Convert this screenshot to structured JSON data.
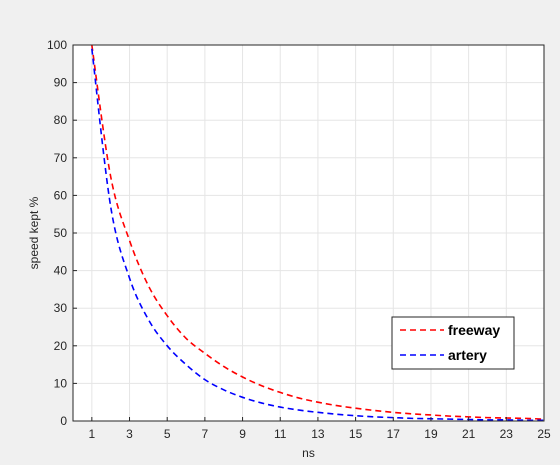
{
  "chart_data": {
    "type": "line",
    "title": "",
    "xlabel": "ns",
    "ylabel": "speed kept %",
    "xlim": [
      0,
      25
    ],
    "ylim": [
      0,
      100
    ],
    "xticks": [
      1,
      3,
      5,
      7,
      9,
      11,
      13,
      15,
      17,
      19,
      21,
      23,
      25
    ],
    "yticks": [
      0,
      10,
      20,
      30,
      40,
      50,
      60,
      70,
      80,
      90,
      100
    ],
    "grid": true,
    "legend_position": "bottom-right",
    "x": [
      1,
      2,
      3,
      4,
      5,
      6,
      7,
      8,
      9,
      10,
      11,
      12,
      13,
      14,
      15,
      16,
      17,
      18,
      19,
      20,
      21,
      22,
      23,
      24,
      25
    ],
    "series": [
      {
        "name": "freeway",
        "color": "#ff0000",
        "values": [
          100,
          65,
          48,
          36,
          28,
          22,
          18,
          14.5,
          11.7,
          9.4,
          7.6,
          6.1,
          5.0,
          4.1,
          3.4,
          2.8,
          2.3,
          1.9,
          1.6,
          1.3,
          1.1,
          0.9,
          0.8,
          0.7,
          0.5
        ]
      },
      {
        "name": "artery",
        "color": "#0000ff",
        "values": [
          99,
          57,
          38,
          27,
          20,
          15,
          11,
          8.3,
          6.3,
          4.8,
          3.7,
          2.9,
          2.3,
          1.8,
          1.4,
          1.1,
          0.9,
          0.7,
          0.6,
          0.5,
          0.4,
          0.3,
          0.3,
          0.2,
          0.2
        ]
      }
    ]
  }
}
